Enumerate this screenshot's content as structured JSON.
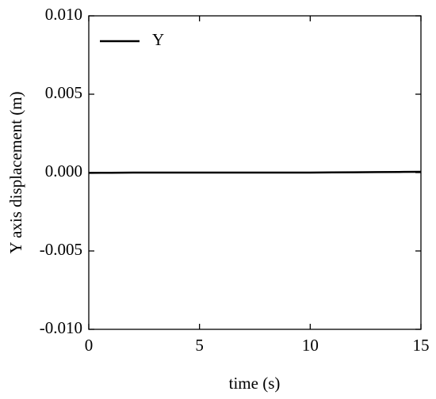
{
  "chart_data": {
    "type": "line",
    "x_label": "time (s)",
    "y_label": "Y axis displacement (m)",
    "x": [
      0,
      1,
      2,
      3,
      4,
      5,
      6,
      7,
      8,
      9,
      10,
      11,
      12,
      13,
      14,
      15
    ],
    "series": [
      {
        "name": "Y",
        "color": "#000000",
        "values": [
          -2e-05,
          -1e-05,
          0,
          0,
          0,
          0,
          0,
          0,
          0,
          0,
          0,
          1e-05,
          2e-05,
          3e-05,
          4e-05,
          5e-05
        ]
      }
    ],
    "xlim": [
      0,
      15
    ],
    "xticks": [
      0,
      5,
      10,
      15
    ],
    "ylim": [
      -0.01,
      0.01
    ],
    "yticks": [
      {
        "value": -0.01,
        "label": "-0.010"
      },
      {
        "value": -0.005,
        "label": "-0.005"
      },
      {
        "value": 0,
        "label": "0.000"
      },
      {
        "value": 0.005,
        "label": "0.005"
      },
      {
        "value": 0.01,
        "label": "0.010"
      }
    ],
    "grid": false,
    "legend": "upper left"
  }
}
